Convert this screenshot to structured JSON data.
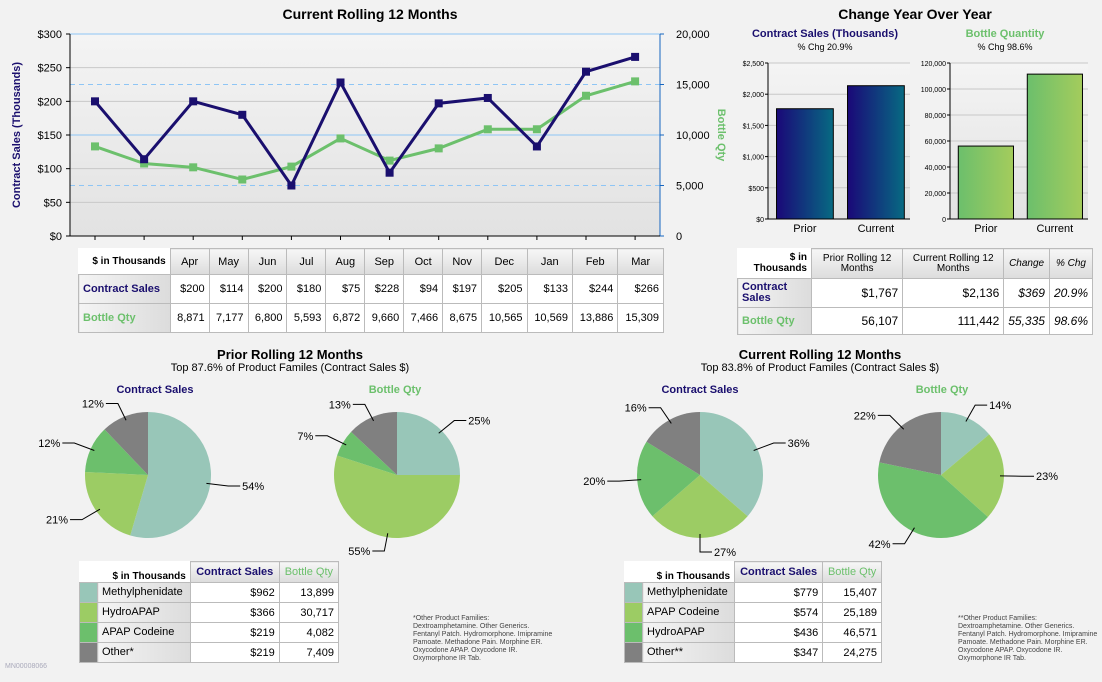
{
  "trend": {
    "title": "Current Rolling 12 Months",
    "y_left_label": "Contract Sales (Thousands)",
    "y_right_label": "Bottle Qty",
    "corner": "$ in Thousands",
    "row_sales": "Contract Sales",
    "row_qty": "Bottle Qty",
    "colors": {
      "sales": "#1a0f6e",
      "qty": "#6cc06c"
    }
  },
  "yoy": {
    "title": "Change Year Over Year",
    "corner": "$ in Thousands",
    "headers": [
      "Prior Rolling 12 Months",
      "Current Rolling 12 Months",
      "Change",
      "% Chg"
    ],
    "rows": [
      {
        "label": "Contract Sales",
        "values": [
          "$1,767",
          "$2,136",
          "$369",
          "20.9%"
        ]
      },
      {
        "label": "Bottle Qty",
        "values": [
          "56,107",
          "111,442",
          "55,335",
          "98.6%"
        ]
      }
    ]
  },
  "prior_pies": {
    "title": "Prior Rolling 12 Months",
    "subtitle": "Top 87.6% of Product Familes (Contract Sales $)"
  },
  "current_pies": {
    "title": "Current Rolling 12 Months",
    "subtitle": "Top 83.8% of Product Familes (Contract Sales $)"
  },
  "prior_table": {
    "corner": "$ in Thousands",
    "h1": "Contract Sales",
    "h2": "Bottle Qty",
    "rows": [
      {
        "name": "Methylphenidate",
        "sales": "$962",
        "qty": "13,899",
        "color": "#98c6b8"
      },
      {
        "name": "HydroAPAP",
        "sales": "$366",
        "qty": "30,717",
        "color": "#9ccc64"
      },
      {
        "name": "APAP Codeine",
        "sales": "$219",
        "qty": "4,082",
        "color": "#6cbf6c"
      },
      {
        "name": "Other*",
        "sales": "$219",
        "qty": "7,409",
        "color": "#808080"
      }
    ],
    "note": "*Other Product Families:\nDextroamphetamine. Other Generics.\nFentanyl Patch. Hydromorphone. Imipramine\nPamoate. Methadone Pain. Morphine ER.\nOxycodone APAP. Oxycodone IR.\nOxymorphone IR Tab."
  },
  "current_table": {
    "corner": "$ in Thousands",
    "h1": "Contract Sales",
    "h2": "Bottle Qty",
    "rows": [
      {
        "name": "Methylphenidate",
        "sales": "$779",
        "qty": "15,407",
        "color": "#98c6b8"
      },
      {
        "name": "APAP Codeine",
        "sales": "$574",
        "qty": "25,189",
        "color": "#9ccc64"
      },
      {
        "name": "HydroAPAP",
        "sales": "$436",
        "qty": "46,571",
        "color": "#6cbf6c"
      },
      {
        "name": "Other**",
        "sales": "$347",
        "qty": "24,275",
        "color": "#808080"
      }
    ],
    "note": "**Other Product Families:\nDextroamphetamine. Other Generics.\nFentanyl Patch. Hydromorphone. Imipramine\nPamoate. Methadone Pain. Morphine ER.\nOxycodone APAP. Oxycodone IR.\nOxymorphone IR Tab."
  },
  "doc_id": "MN00008066",
  "chart_data": [
    {
      "type": "line",
      "title": "Current Rolling 12 Months",
      "categories": [
        "Apr",
        "May",
        "Jun",
        "Jul",
        "Aug",
        "Sep",
        "Oct",
        "Nov",
        "Dec",
        "Jan",
        "Feb",
        "Mar"
      ],
      "series": [
        {
          "name": "Contract Sales",
          "axis": "left",
          "values": [
            200,
            114,
            200,
            180,
            75,
            228,
            94,
            197,
            205,
            133,
            244,
            266
          ],
          "labels": [
            "$200",
            "$114",
            "$200",
            "$180",
            "$75",
            "$228",
            "$94",
            "$197",
            "$205",
            "$133",
            "$244",
            "$266"
          ]
        },
        {
          "name": "Bottle Qty",
          "axis": "right",
          "values": [
            8871,
            7177,
            6800,
            5593,
            6872,
            9660,
            7466,
            8675,
            10565,
            10569,
            13886,
            15309
          ],
          "labels": [
            "8,871",
            "7,177",
            "6,800",
            "5,593",
            "6,872",
            "9,660",
            "7,466",
            "8,675",
            "10,565",
            "10,569",
            "13,886",
            "15,309"
          ]
        }
      ],
      "ylabel": "Contract Sales (Thousands)",
      "ylabel_right": "Bottle Qty",
      "ylim": [
        0,
        300
      ],
      "yticks": [
        "$0",
        "$50",
        "$100",
        "$150",
        "$200",
        "$250",
        "$300"
      ],
      "ylim_right": [
        0,
        20000
      ],
      "yticks_right": [
        "0",
        "5,000",
        "10,000",
        "15,000",
        "20,000"
      ],
      "grid": true
    },
    {
      "type": "bar",
      "title": "Contract Sales (Thousands)",
      "subtitle": "% Chg 20.9%",
      "categories": [
        "Prior",
        "Current"
      ],
      "values": [
        1767,
        2136
      ],
      "ylim": [
        0,
        2500
      ],
      "yticks": [
        "$0",
        "$500",
        "$1,000",
        "$1,500",
        "$2,000",
        "$2,500"
      ],
      "color": [
        "#1a0878",
        "#076a82"
      ]
    },
    {
      "type": "bar",
      "title": "Bottle Quantity",
      "subtitle": "% Chg 98.6%",
      "categories": [
        "Prior",
        "Current"
      ],
      "values": [
        56107,
        111442
      ],
      "ylim": [
        0,
        120000
      ],
      "yticks": [
        "0",
        "20,000",
        "40,000",
        "60,000",
        "80,000",
        "100,000",
        "120,000"
      ],
      "color": [
        "#6cbf6c",
        "#a4cc5c"
      ]
    },
    {
      "type": "pie",
      "title": "Contract Sales",
      "group": "prior",
      "categories": [
        "Methylphenidate",
        "HydroAPAP",
        "APAP Codeine",
        "Other*"
      ],
      "values": [
        54,
        21,
        12,
        12
      ],
      "labels": [
        "54%",
        "21%",
        "12%",
        "12%"
      ]
    },
    {
      "type": "pie",
      "title": "Bottle Qty",
      "group": "prior",
      "categories": [
        "Methylphenidate",
        "HydroAPAP",
        "APAP Codeine",
        "Other*"
      ],
      "values": [
        25,
        55,
        7,
        13
      ],
      "labels": [
        "25%",
        "55%",
        "7%",
        "13%"
      ]
    },
    {
      "type": "pie",
      "title": "Contract Sales",
      "group": "current",
      "categories": [
        "Methylphenidate",
        "APAP Codeine",
        "HydroAPAP",
        "Other**"
      ],
      "values": [
        36,
        27,
        20,
        16
      ],
      "labels": [
        "36%",
        "27%",
        "20%",
        "16%"
      ]
    },
    {
      "type": "pie",
      "title": "Bottle Qty",
      "group": "current",
      "categories": [
        "Methylphenidate",
        "APAP Codeine",
        "HydroAPAP",
        "Other**"
      ],
      "values": [
        14,
        23,
        42,
        22
      ],
      "labels": [
        "14%",
        "23%",
        "42%",
        "22%"
      ]
    }
  ]
}
